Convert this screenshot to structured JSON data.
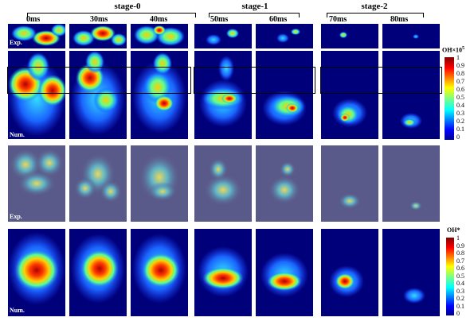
{
  "stages": [
    "stage-0",
    "stage-1",
    "stage-2"
  ],
  "times": [
    "0ms",
    "30ms",
    "40ms",
    "50ms",
    "60ms",
    "70ms",
    "80ms"
  ],
  "row_labels": {
    "row1_exp": "Exp.",
    "row1_num": "Num.",
    "row2_exp": "Exp.",
    "row2_num": "Num."
  },
  "colorbar1": {
    "title": "OH×10",
    "title_sup": "5",
    "ticks": [
      "1",
      "0.9",
      "0.8",
      "0.7",
      "0.6",
      "0.5",
      "0.4",
      "0.3",
      "0.2",
      "0.1",
      "0"
    ]
  },
  "colorbar2": {
    "title": "OH*",
    "ticks": [
      "1",
      "0.9",
      "0.8",
      "0.7",
      "0.6",
      "0.5",
      "0.4",
      "0.3",
      "0.2",
      "0.1",
      "0"
    ]
  }
}
